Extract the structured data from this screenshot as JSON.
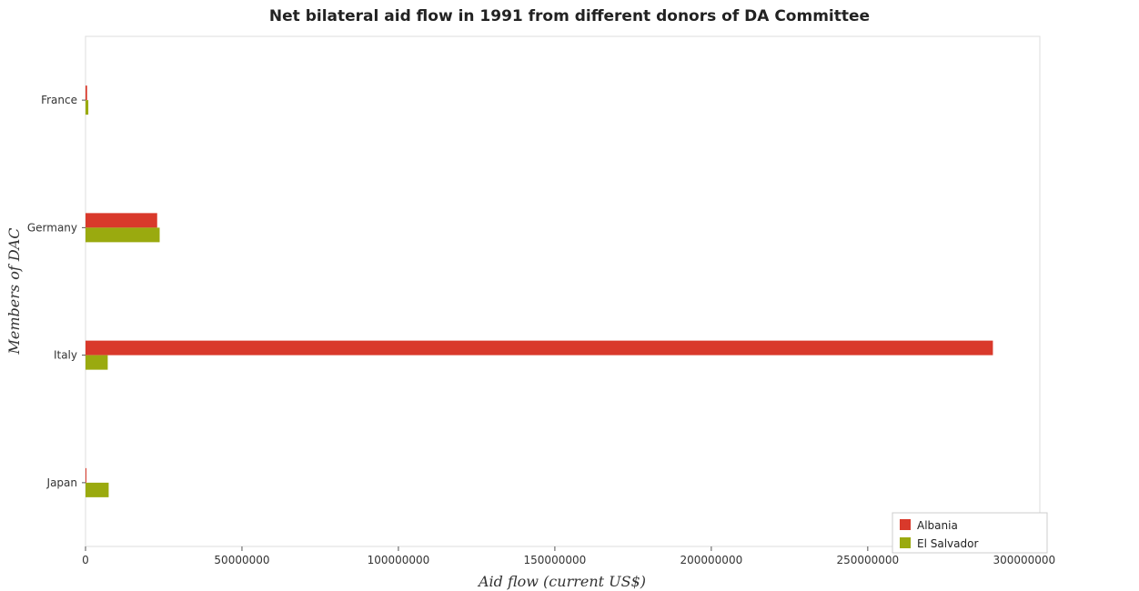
{
  "chart_data": {
    "type": "bar",
    "orientation": "horizontal",
    "title": "Net bilateral aid flow in 1991 from different donors of DA Committee",
    "xlabel": "Aid flow (current US$)",
    "ylabel": "Members of DAC",
    "categories": [
      "France",
      "Germany",
      "Italy",
      "Japan"
    ],
    "series": [
      {
        "name": "Albania",
        "color": "#d9392b",
        "values": [
          500000,
          22900000,
          290000000,
          100000
        ]
      },
      {
        "name": "El Salvador",
        "color": "#9aaa0f",
        "values": [
          900000,
          23700000,
          7100000,
          7400000
        ]
      }
    ],
    "xlim": [
      0,
      305000000
    ],
    "xticks": [
      0,
      50000000,
      100000000,
      150000000,
      200000000,
      250000000,
      300000000
    ],
    "xtick_labels": [
      "0",
      "50000000",
      "100000000",
      "150000000",
      "200000000",
      "250000000",
      "300000000"
    ],
    "grid": false,
    "legend_position": "bottom-right"
  }
}
